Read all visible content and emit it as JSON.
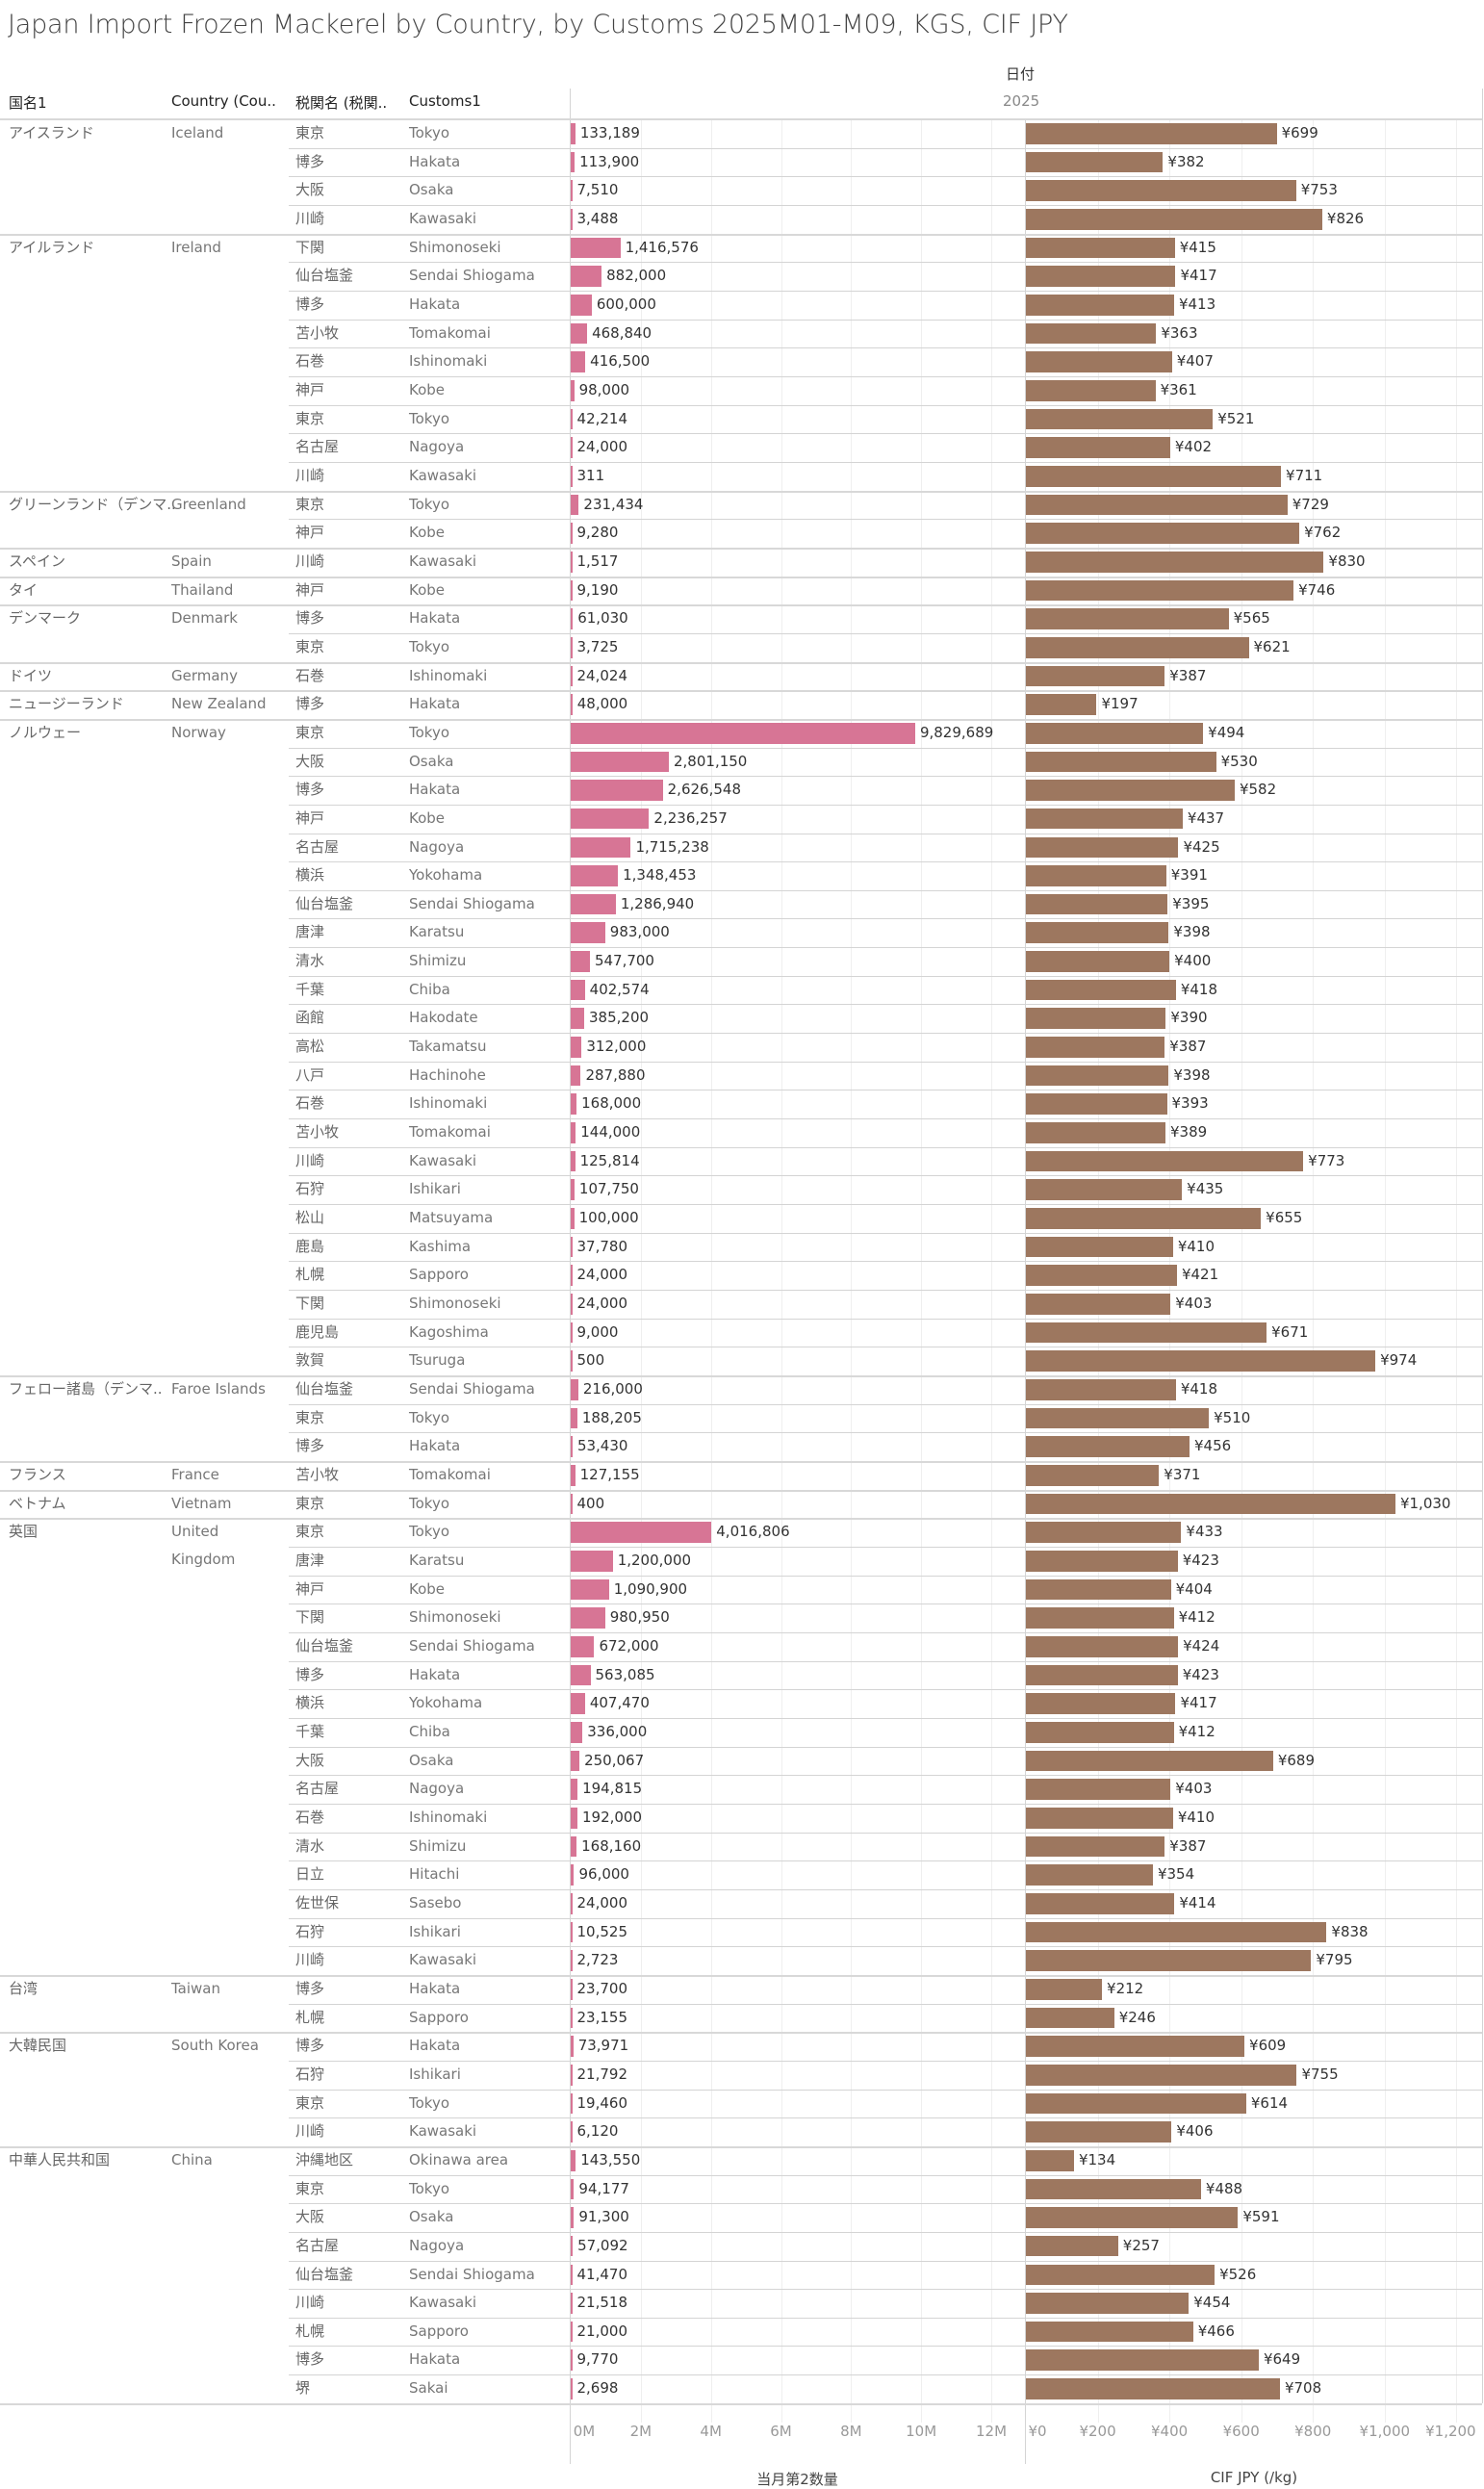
{
  "title": "Japan Import Frozen Mackerel by Country, by Customs 2025M01-M09, KGS, CIF JPY",
  "headers": {
    "country_ja": "国名1",
    "country_en": "Country (Cou..",
    "customs_ja": "税関名 (税関..",
    "customs_en": "Customs1"
  },
  "date_header": "日付",
  "year": "2025",
  "colors": {
    "quantity_bar": "#d77595",
    "price_bar": "#9d775f"
  },
  "chart_data": {
    "type": "bar",
    "title": "Japan Import Frozen Mackerel by Country, by Customs 2025M01-M09, KGS, CIF JPY",
    "orientation": "horizontal",
    "panels": [
      {
        "key": "qty",
        "xlabel": "当月第2数量",
        "xlim": [
          0,
          12000000
        ],
        "ticks": [
          0,
          2000000,
          4000000,
          6000000,
          8000000,
          10000000,
          12000000
        ],
        "tick_labels": [
          "0M",
          "2M",
          "4M",
          "6M",
          "8M",
          "10M",
          "12M"
        ]
      },
      {
        "key": "price",
        "xlabel": "CIF JPY (/kg)",
        "xlim": [
          0,
          1200
        ],
        "ticks": [
          0,
          200,
          400,
          600,
          800,
          1000,
          1200
        ],
        "tick_labels": [
          "¥0",
          "¥200",
          "¥400",
          "¥600",
          "¥800",
          "¥1,000",
          "¥1,200"
        ]
      }
    ],
    "grid": true,
    "groups": [
      {
        "country_ja": "アイスランド",
        "country_en": "Iceland",
        "rows": [
          [
            "東京",
            "Tokyo",
            133189,
            699
          ],
          [
            "博多",
            "Hakata",
            113900,
            382
          ],
          [
            "大阪",
            "Osaka",
            7510,
            753
          ],
          [
            "川崎",
            "Kawasaki",
            3488,
            826
          ]
        ]
      },
      {
        "country_ja": "アイルランド",
        "country_en": "Ireland",
        "rows": [
          [
            "下関",
            "Shimonoseki",
            1416576,
            415
          ],
          [
            "仙台塩釜",
            "Sendai Shiogama",
            882000,
            417
          ],
          [
            "博多",
            "Hakata",
            600000,
            413
          ],
          [
            "苫小牧",
            "Tomakomai",
            468840,
            363
          ],
          [
            "石巻",
            "Ishinomaki",
            416500,
            407
          ],
          [
            "神戸",
            "Kobe",
            98000,
            361
          ],
          [
            "東京",
            "Tokyo",
            42214,
            521
          ],
          [
            "名古屋",
            "Nagoya",
            24000,
            402
          ],
          [
            "川崎",
            "Kawasaki",
            311,
            711
          ]
        ]
      },
      {
        "country_ja": "グリーンランド（デンマ..",
        "country_en": "Greenland",
        "rows": [
          [
            "東京",
            "Tokyo",
            231434,
            729
          ],
          [
            "神戸",
            "Kobe",
            9280,
            762
          ]
        ]
      },
      {
        "country_ja": "スペイン",
        "country_en": "Spain",
        "rows": [
          [
            "川崎",
            "Kawasaki",
            1517,
            830
          ]
        ]
      },
      {
        "country_ja": "タイ",
        "country_en": "Thailand",
        "rows": [
          [
            "神戸",
            "Kobe",
            9190,
            746
          ]
        ]
      },
      {
        "country_ja": "デンマーク",
        "country_en": "Denmark",
        "rows": [
          [
            "博多",
            "Hakata",
            61030,
            565
          ],
          [
            "東京",
            "Tokyo",
            3725,
            621
          ]
        ]
      },
      {
        "country_ja": "ドイツ",
        "country_en": "Germany",
        "rows": [
          [
            "石巻",
            "Ishinomaki",
            24024,
            387
          ]
        ]
      },
      {
        "country_ja": "ニュージーランド",
        "country_en": "New Zealand",
        "rows": [
          [
            "博多",
            "Hakata",
            48000,
            197
          ]
        ]
      },
      {
        "country_ja": "ノルウェー",
        "country_en": "Norway",
        "rows": [
          [
            "東京",
            "Tokyo",
            9829689,
            494
          ],
          [
            "大阪",
            "Osaka",
            2801150,
            530
          ],
          [
            "博多",
            "Hakata",
            2626548,
            582
          ],
          [
            "神戸",
            "Kobe",
            2236257,
            437
          ],
          [
            "名古屋",
            "Nagoya",
            1715238,
            425
          ],
          [
            "横浜",
            "Yokohama",
            1348453,
            391
          ],
          [
            "仙台塩釜",
            "Sendai Shiogama",
            1286940,
            395
          ],
          [
            "唐津",
            "Karatsu",
            983000,
            398
          ],
          [
            "清水",
            "Shimizu",
            547700,
            400
          ],
          [
            "千葉",
            "Chiba",
            402574,
            418
          ],
          [
            "函館",
            "Hakodate",
            385200,
            390
          ],
          [
            "高松",
            "Takamatsu",
            312000,
            387
          ],
          [
            "八戸",
            "Hachinohe",
            287880,
            398
          ],
          [
            "石巻",
            "Ishinomaki",
            168000,
            393
          ],
          [
            "苫小牧",
            "Tomakomai",
            144000,
            389
          ],
          [
            "川崎",
            "Kawasaki",
            125814,
            773
          ],
          [
            "石狩",
            "Ishikari",
            107750,
            435
          ],
          [
            "松山",
            "Matsuyama",
            100000,
            655
          ],
          [
            "鹿島",
            "Kashima",
            37780,
            410
          ],
          [
            "札幌",
            "Sapporo",
            24000,
            421
          ],
          [
            "下関",
            "Shimonoseki",
            24000,
            403
          ],
          [
            "鹿児島",
            "Kagoshima",
            9000,
            671
          ],
          [
            "敦賀",
            "Tsuruga",
            500,
            974
          ]
        ]
      },
      {
        "country_ja": "フェロー諸島（デンマ..",
        "country_en": "Faroe Islands",
        "rows": [
          [
            "仙台塩釜",
            "Sendai Shiogama",
            216000,
            418
          ],
          [
            "東京",
            "Tokyo",
            188205,
            510
          ],
          [
            "博多",
            "Hakata",
            53430,
            456
          ]
        ]
      },
      {
        "country_ja": "フランス",
        "country_en": "France",
        "rows": [
          [
            "苫小牧",
            "Tomakomai",
            127155,
            371
          ]
        ]
      },
      {
        "country_ja": "ベトナム",
        "country_en": "Vietnam",
        "rows": [
          [
            "東京",
            "Tokyo",
            400,
            1030
          ]
        ]
      },
      {
        "country_ja": "英国",
        "country_en": "United Kingdom",
        "rows": [
          [
            "東京",
            "Tokyo",
            4016806,
            433
          ],
          [
            "唐津",
            "Karatsu",
            1200000,
            423
          ],
          [
            "神戸",
            "Kobe",
            1090900,
            404
          ],
          [
            "下関",
            "Shimonoseki",
            980950,
            412
          ],
          [
            "仙台塩釜",
            "Sendai Shiogama",
            672000,
            424
          ],
          [
            "博多",
            "Hakata",
            563085,
            423
          ],
          [
            "横浜",
            "Yokohama",
            407470,
            417
          ],
          [
            "千葉",
            "Chiba",
            336000,
            412
          ],
          [
            "大阪",
            "Osaka",
            250067,
            689
          ],
          [
            "名古屋",
            "Nagoya",
            194815,
            403
          ],
          [
            "石巻",
            "Ishinomaki",
            192000,
            410
          ],
          [
            "清水",
            "Shimizu",
            168160,
            387
          ],
          [
            "日立",
            "Hitachi",
            96000,
            354
          ],
          [
            "佐世保",
            "Sasebo",
            24000,
            414
          ],
          [
            "石狩",
            "Ishikari",
            10525,
            838
          ],
          [
            "川崎",
            "Kawasaki",
            2723,
            795
          ]
        ]
      },
      {
        "country_ja": "台湾",
        "country_en": "Taiwan",
        "rows": [
          [
            "博多",
            "Hakata",
            23700,
            212
          ],
          [
            "札幌",
            "Sapporo",
            23155,
            246
          ]
        ]
      },
      {
        "country_ja": "大韓民国",
        "country_en": "South Korea",
        "rows": [
          [
            "博多",
            "Hakata",
            73971,
            609
          ],
          [
            "石狩",
            "Ishikari",
            21792,
            755
          ],
          [
            "東京",
            "Tokyo",
            19460,
            614
          ],
          [
            "川崎",
            "Kawasaki",
            6120,
            406
          ]
        ]
      },
      {
        "country_ja": "中華人民共和国",
        "country_en": "China",
        "rows": [
          [
            "沖縄地区",
            "Okinawa area",
            143550,
            134
          ],
          [
            "東京",
            "Tokyo",
            94177,
            488
          ],
          [
            "大阪",
            "Osaka",
            91300,
            591
          ],
          [
            "名古屋",
            "Nagoya",
            57092,
            257
          ],
          [
            "仙台塩釜",
            "Sendai Shiogama",
            41470,
            526
          ],
          [
            "川崎",
            "Kawasaki",
            21518,
            454
          ],
          [
            "札幌",
            "Sapporo",
            21000,
            466
          ],
          [
            "博多",
            "Hakata",
            9770,
            649
          ],
          [
            "堺",
            "Sakai",
            2698,
            708
          ]
        ]
      }
    ]
  }
}
